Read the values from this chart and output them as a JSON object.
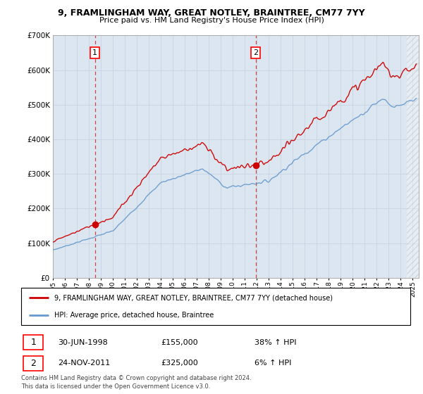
{
  "title_line1": "9, FRAMLINGHAM WAY, GREAT NOTLEY, BRAINTREE, CM77 7YY",
  "title_line2": "Price paid vs. HM Land Registry's House Price Index (HPI)",
  "legend_line1": "9, FRAMLINGHAM WAY, GREAT NOTLEY, BRAINTREE, CM77 7YY (detached house)",
  "legend_line2": "HPI: Average price, detached house, Braintree",
  "sale1_label": "1",
  "sale1_date": "30-JUN-1998",
  "sale1_price": "£155,000",
  "sale1_hpi": "38% ↑ HPI",
  "sale1_year": 1998.5,
  "sale1_value": 155000,
  "sale2_label": "2",
  "sale2_date": "24-NOV-2011",
  "sale2_price": "£325,000",
  "sale2_hpi": "6% ↑ HPI",
  "sale2_year": 2011.9,
  "sale2_value": 325000,
  "footer": "Contains HM Land Registry data © Crown copyright and database right 2024.\nThis data is licensed under the Open Government Licence v3.0.",
  "ylim": [
    0,
    700000
  ],
  "yticks": [
    0,
    100000,
    200000,
    300000,
    400000,
    500000,
    600000,
    700000
  ],
  "xlim_start": 1995.0,
  "xlim_end": 2025.5,
  "grid_color": "#c8d4e3",
  "plot_bg": "#dce6f1",
  "red_color": "#cc0000",
  "blue_color": "#6699cc",
  "dashed_line_color": "#cc0000",
  "hatch_color": "#bbbbbb"
}
